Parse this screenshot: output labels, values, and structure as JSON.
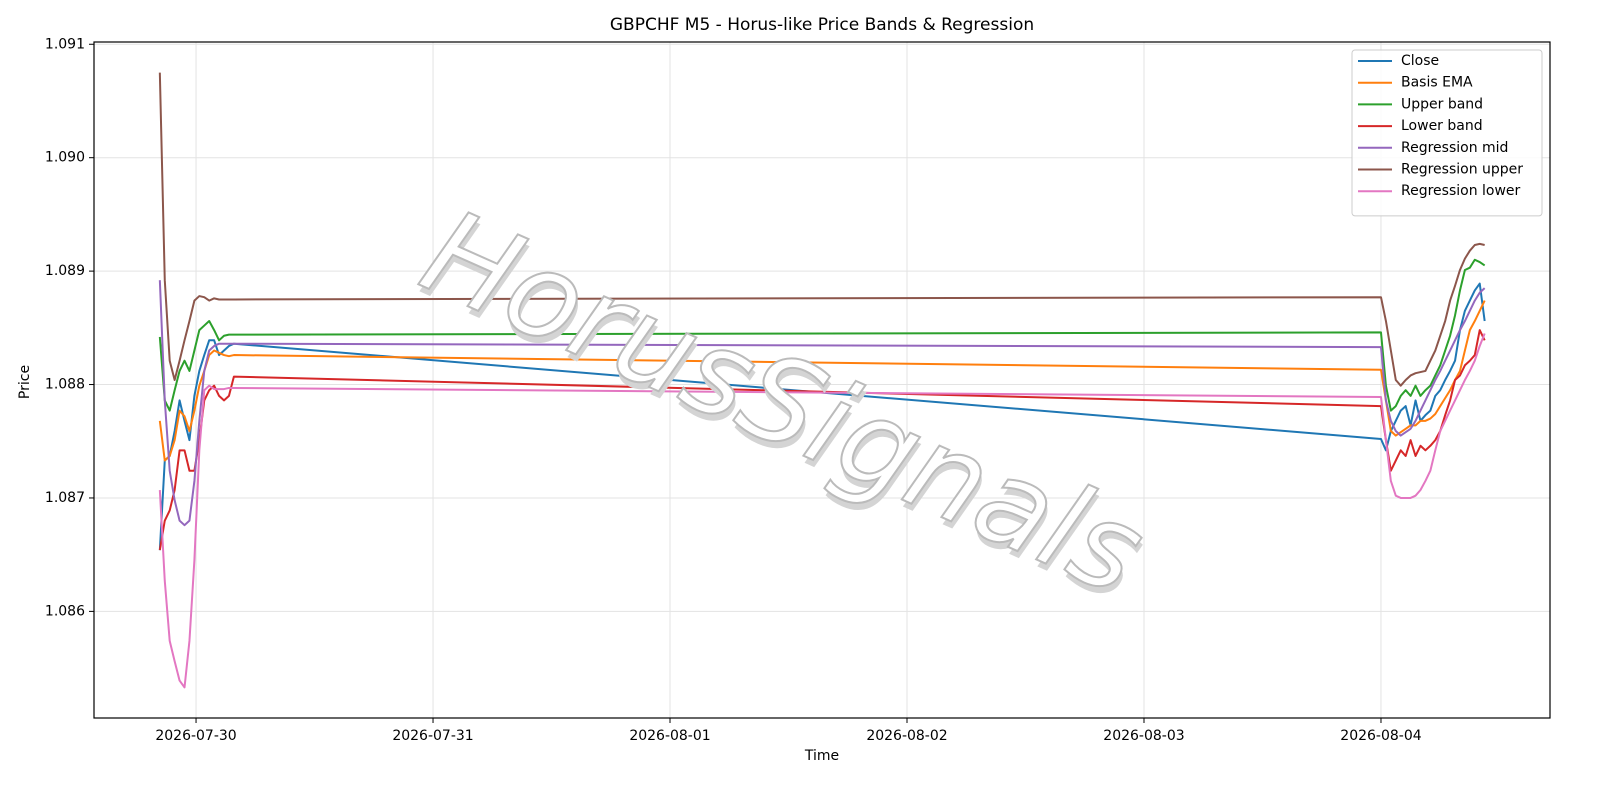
{
  "chart_data": {
    "type": "line",
    "title": "GBPCHF M5 - Horus-like Price Bands & Regression",
    "x_label": "Time",
    "y_label": "Price",
    "watermark": "HorusSignals",
    "legend": "upper right",
    "grid": true,
    "x": [
      "2026-07-29 20:20",
      "2026-07-29 20:50",
      "2026-07-29 21:20",
      "2026-07-29 21:50",
      "2026-07-29 22:20",
      "2026-07-29 22:50",
      "2026-07-29 23:20",
      "2026-07-29 23:50",
      "2026-07-30 00:20",
      "2026-07-30 00:50",
      "2026-07-30 01:20",
      "2026-07-30 01:50",
      "2026-07-30 02:20",
      "2026-07-30 02:50",
      "2026-07-30 03:20",
      "2026-07-30 03:50",
      "2026-08-04 00:00",
      "2026-08-04 00:30",
      "2026-08-04 01:00",
      "2026-08-04 01:30",
      "2026-08-04 02:00",
      "2026-08-04 02:30",
      "2026-08-04 03:00",
      "2026-08-04 03:30",
      "2026-08-04 04:00",
      "2026-08-04 04:30",
      "2026-08-04 05:00",
      "2026-08-04 05:30",
      "2026-08-04 06:00",
      "2026-08-04 06:30",
      "2026-08-04 07:00",
      "2026-08-04 07:30",
      "2026-08-04 08:00",
      "2026-08-04 08:30",
      "2026-08-04 09:00",
      "2026-08-04 09:30",
      "2026-08-04 10:00",
      "2026-08-04 10:30"
    ],
    "xlim": [
      "2026-07-29 13:40",
      "2026-08-04 17:07"
    ],
    "xticks": [
      "2026-07-30",
      "2026-07-31",
      "2026-08-01",
      "2026-08-02",
      "2026-08-03",
      "2026-08-04"
    ],
    "ylim": [
      1.08506,
      1.09102
    ],
    "yticks": [
      1.086,
      1.087,
      1.088,
      1.089,
      {
        "value": 1.09,
        "label": "1.090"
      },
      1.091
    ],
    "series": [
      {
        "name": "Close",
        "color": "#1f77b4",
        "values": [
          1.08654,
          1.08733,
          1.08737,
          1.08759,
          1.08786,
          1.08768,
          1.08751,
          1.0879,
          1.08812,
          1.08826,
          1.08839,
          1.08839,
          1.08826,
          1.0883,
          1.08834,
          1.08836,
          1.08752,
          1.08742,
          1.08759,
          1.08768,
          1.08777,
          1.08781,
          1.08764,
          1.08786,
          1.08768,
          1.08773,
          1.08777,
          1.0879,
          1.08795,
          1.08804,
          1.08812,
          1.08821,
          1.08848,
          1.08865,
          1.08874,
          1.08883,
          1.08889,
          1.08856
        ]
      },
      {
        "name": "Basis EMA",
        "color": "#ff7f0e",
        "values": [
          1.08768,
          1.08733,
          1.08737,
          1.08751,
          1.08777,
          1.08772,
          1.08759,
          1.08777,
          1.08799,
          1.08812,
          1.08826,
          1.0883,
          1.08828,
          1.08826,
          1.08825,
          1.08826,
          1.08813,
          1.08786,
          1.08759,
          1.08755,
          1.08758,
          1.08761,
          1.08764,
          1.08764,
          1.08768,
          1.08768,
          1.0877,
          1.08774,
          1.08781,
          1.08788,
          1.08795,
          1.08804,
          1.08812,
          1.0883,
          1.08848,
          1.08856,
          1.08865,
          1.08874
        ]
      },
      {
        "name": "Upper band",
        "color": "#2ca02c",
        "values": [
          1.08842,
          1.08786,
          1.08777,
          1.08795,
          1.08812,
          1.08821,
          1.08812,
          1.0883,
          1.08848,
          1.08852,
          1.08856,
          1.08848,
          1.08839,
          1.08843,
          1.08844,
          1.08844,
          1.08846,
          1.08799,
          1.08777,
          1.08781,
          1.0879,
          1.08795,
          1.0879,
          1.08799,
          1.0879,
          1.08795,
          1.08799,
          1.08808,
          1.08817,
          1.0883,
          1.08843,
          1.08861,
          1.08883,
          1.08901,
          1.08903,
          1.0891,
          1.08908,
          1.08905
        ]
      },
      {
        "name": "Lower band",
        "color": "#d62728",
        "values": [
          1.08654,
          1.0868,
          1.08689,
          1.08707,
          1.08742,
          1.08742,
          1.08724,
          1.08724,
          1.08751,
          1.08786,
          1.08795,
          1.08799,
          1.0879,
          1.08786,
          1.0879,
          1.08807,
          1.08781,
          1.08751,
          1.08724,
          1.08733,
          1.08742,
          1.08737,
          1.08751,
          1.08737,
          1.08746,
          1.08742,
          1.08746,
          1.08751,
          1.08759,
          1.08773,
          1.08786,
          1.08804,
          1.08808,
          1.08817,
          1.08821,
          1.08826,
          1.08848,
          1.08839
        ]
      },
      {
        "name": "Regression mid",
        "color": "#9467bd",
        "values": [
          1.08892,
          1.08786,
          1.08724,
          1.08698,
          1.0868,
          1.08676,
          1.0868,
          1.08715,
          1.08768,
          1.08812,
          1.0883,
          1.08834,
          1.08836,
          1.08836,
          1.08836,
          1.08836,
          1.08833,
          1.08786,
          1.08768,
          1.08759,
          1.08755,
          1.08758,
          1.08761,
          1.08768,
          1.08777,
          1.08786,
          1.08795,
          1.08804,
          1.08812,
          1.08821,
          1.0883,
          1.08839,
          1.08848,
          1.08856,
          1.08865,
          1.08874,
          1.08881,
          1.08885
        ]
      },
      {
        "name": "Regression upper",
        "color": "#8c564b",
        "values": [
          1.09075,
          1.08892,
          1.08821,
          1.08804,
          1.08821,
          1.08839,
          1.08856,
          1.08874,
          1.08878,
          1.08877,
          1.08874,
          1.08876,
          1.08875,
          1.08875,
          1.08875,
          1.08875,
          1.08877,
          1.08856,
          1.0883,
          1.08804,
          1.08799,
          1.08804,
          1.08808,
          1.0881,
          1.08811,
          1.08812,
          1.08821,
          1.0883,
          1.08843,
          1.08856,
          1.08874,
          1.08887,
          1.08901,
          1.08911,
          1.08918,
          1.08923,
          1.08924,
          1.08923
        ]
      },
      {
        "name": "Regression lower",
        "color": "#e377c2",
        "values": [
          1.08707,
          1.08627,
          1.08574,
          1.08556,
          1.08539,
          1.08533,
          1.08574,
          1.08645,
          1.08742,
          1.08795,
          1.08799,
          1.08796,
          1.08796,
          1.08796,
          1.08797,
          1.08797,
          1.08789,
          1.08751,
          1.08715,
          1.08702,
          1.087,
          1.087,
          1.087,
          1.08702,
          1.08707,
          1.08715,
          1.08724,
          1.08742,
          1.08759,
          1.08768,
          1.08777,
          1.08786,
          1.08795,
          1.08804,
          1.08812,
          1.08821,
          1.08834,
          1.08845
        ]
      }
    ]
  }
}
